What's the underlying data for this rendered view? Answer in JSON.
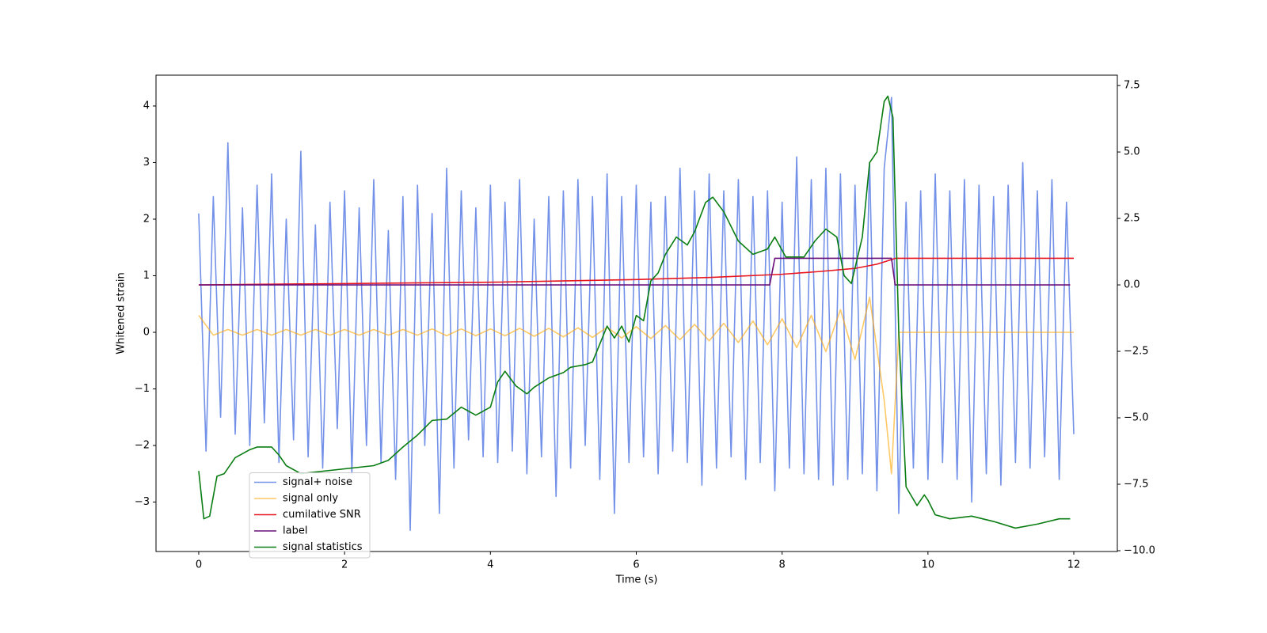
{
  "chart_data": {
    "type": "line",
    "xlabel": "Time (s)",
    "ylabel": "Whitened strain",
    "xlim": [
      -0.586,
      12.597
    ],
    "xticks": [
      0,
      2,
      4,
      6,
      8,
      10,
      12
    ],
    "ylim": [
      -3.874,
      4.545
    ],
    "yticks": [
      {
        "value": -3,
        "label": "−3"
      },
      {
        "value": -2,
        "label": "−2"
      },
      {
        "value": -1,
        "label": "−1"
      },
      0,
      1,
      2,
      3,
      4
    ],
    "y2lim": [
      -10.03,
      7.89
    ],
    "y2ticks": [
      {
        "value": -10,
        "label": "−10.0"
      },
      {
        "value": -7.5,
        "label": "−7.5"
      },
      {
        "value": -5,
        "label": "−5.0"
      },
      {
        "value": -2.5,
        "label": "−2.5"
      },
      {
        "value": 0,
        "label": "0.0"
      },
      2.5,
      {
        "value": 5,
        "label": "5.0"
      },
      7.5
    ],
    "grid": false,
    "legend": "lower left",
    "series": [
      {
        "name": "signal+ noise",
        "color": "#7391e8",
        "x": [
          0,
          0.1,
          0.2,
          0.3,
          0.4,
          0.5,
          0.6,
          0.7,
          0.8,
          0.9,
          1,
          1.1,
          1.2,
          1.3,
          1.4,
          1.5,
          1.6,
          1.7,
          1.8,
          1.9,
          2,
          2.1,
          2.2,
          2.3,
          2.4,
          2.5,
          2.6,
          2.7,
          2.8,
          2.9,
          3,
          3.1,
          3.2,
          3.3,
          3.4,
          3.5,
          3.6,
          3.7,
          3.8,
          3.9,
          4,
          4.1,
          4.2,
          4.3,
          4.4,
          4.5,
          4.6,
          4.7,
          4.8,
          4.9,
          5,
          5.1,
          5.2,
          5.3,
          5.4,
          5.5,
          5.6,
          5.7,
          5.8,
          5.9,
          6,
          6.1,
          6.2,
          6.3,
          6.4,
          6.5,
          6.6,
          6.7,
          6.8,
          6.9,
          7,
          7.1,
          7.2,
          7.3,
          7.4,
          7.5,
          7.6,
          7.7,
          7.8,
          7.9,
          8,
          8.1,
          8.2,
          8.3,
          8.4,
          8.5,
          8.6,
          8.7,
          8.8,
          8.9,
          9,
          9.1,
          9.2,
          9.3,
          9.4,
          9.5,
          9.6,
          9.7,
          9.8,
          9.9,
          10,
          10.1,
          10.2,
          10.3,
          10.4,
          10.5,
          10.6,
          10.7,
          10.8,
          10.9,
          11,
          11.1,
          11.2,
          11.3,
          11.4,
          11.5,
          11.6,
          11.7,
          11.8,
          11.9,
          12
        ],
        "values": [
          2.1,
          -2.1,
          2.4,
          -1.5,
          3.35,
          -1.8,
          2.2,
          -2.0,
          2.6,
          -1.6,
          2.8,
          -2.3,
          2.0,
          -1.9,
          3.2,
          -2.2,
          1.9,
          -2.4,
          2.3,
          -1.7,
          2.5,
          -2.5,
          2.2,
          -2.0,
          2.7,
          -2.3,
          1.8,
          -2.6,
          2.4,
          -3.5,
          2.6,
          -2.0,
          2.1,
          -3.2,
          2.9,
          -2.4,
          2.5,
          -1.9,
          2.2,
          -2.2,
          2.6,
          -2.3,
          2.3,
          -2.1,
          2.7,
          -2.5,
          2.0,
          -2.2,
          2.4,
          -2.9,
          2.5,
          -2.4,
          2.7,
          -2.0,
          2.4,
          -2.6,
          2.8,
          -3.2,
          2.4,
          -2.3,
          2.6,
          -2.2,
          2.3,
          -2.5,
          2.4,
          -2.1,
          2.9,
          -2.3,
          2.5,
          -2.7,
          2.8,
          -2.4,
          2.5,
          -2.2,
          2.7,
          -2.6,
          2.4,
          -2.3,
          2.5,
          -2.8,
          2.3,
          -2.4,
          3.1,
          -2.5,
          2.7,
          -2.6,
          2.9,
          -2.7,
          2.8,
          -2.6,
          2.6,
          -2.5,
          3.0,
          -2.8,
          2.9,
          4.15,
          -3.2,
          2.3,
          -2.4,
          2.5,
          -2.6,
          2.8,
          -2.3,
          2.5,
          -2.6,
          2.7,
          -3.0,
          2.6,
          -2.5,
          2.4,
          -2.7,
          2.6,
          -2.3,
          3.0,
          -2.4,
          2.5,
          -2.2,
          2.7,
          -2.6,
          2.3,
          -1.8
        ]
      },
      {
        "name": "signal only",
        "color": "#ffa500",
        "x": [
          0,
          0.2,
          0.4,
          0.6,
          0.8,
          1,
          1.2,
          1.4,
          1.6,
          1.8,
          2,
          2.2,
          2.4,
          2.6,
          2.8,
          3,
          3.2,
          3.4,
          3.6,
          3.8,
          4,
          4.2,
          4.4,
          4.6,
          4.8,
          5,
          5.2,
          5.4,
          5.6,
          5.8,
          6,
          6.2,
          6.4,
          6.6,
          6.8,
          7,
          7.2,
          7.4,
          7.6,
          7.8,
          8,
          8.2,
          8.4,
          8.6,
          8.8,
          9,
          9.2,
          9.4,
          9.5,
          9.6,
          10,
          11,
          12
        ],
        "values": [
          0.3,
          -0.05,
          0.05,
          -0.05,
          0.05,
          -0.05,
          0.05,
          -0.05,
          0.05,
          -0.05,
          0.05,
          -0.05,
          0.05,
          -0.05,
          0.05,
          -0.05,
          0.06,
          -0.06,
          0.06,
          -0.06,
          0.06,
          -0.06,
          0.07,
          -0.07,
          0.07,
          -0.08,
          0.08,
          -0.09,
          0.09,
          -0.1,
          0.1,
          -0.11,
          0.12,
          -0.13,
          0.14,
          -0.15,
          0.16,
          -0.18,
          0.2,
          -0.22,
          0.24,
          -0.27,
          0.3,
          -0.34,
          0.4,
          -0.48,
          0.62,
          -1.2,
          -2.5,
          0,
          0,
          0,
          0
        ]
      },
      {
        "name": "cumilative SNR",
        "color": "#e8141e",
        "axis": "y2",
        "x": [
          0,
          2,
          4,
          6,
          7,
          8,
          8.5,
          9,
          9.3,
          9.5,
          9.55,
          12
        ],
        "values": [
          0.0,
          0.05,
          0.1,
          0.2,
          0.28,
          0.4,
          0.5,
          0.62,
          0.78,
          0.95,
          1.0,
          1.0
        ]
      },
      {
        "name": "label",
        "color": "#6a0f7a",
        "axis": "y2",
        "x": [
          0,
          7.83,
          7.9,
          9.5,
          9.55,
          11.95
        ],
        "values": [
          0,
          0,
          1,
          1,
          0,
          0
        ]
      },
      {
        "name": "signal statistics",
        "color": "#0a7d12",
        "axis": "y2",
        "x": [
          0,
          0.07,
          0.15,
          0.25,
          0.35,
          0.5,
          0.7,
          0.8,
          1.0,
          1.1,
          1.2,
          1.4,
          2.4,
          2.6,
          2.8,
          3.0,
          3.2,
          3.4,
          3.6,
          3.8,
          4.0,
          4.1,
          4.2,
          4.35,
          4.5,
          4.6,
          4.8,
          5.0,
          5.1,
          5.3,
          5.4,
          5.6,
          5.7,
          5.8,
          5.9,
          6.0,
          6.1,
          6.2,
          6.3,
          6.4,
          6.55,
          6.7,
          6.8,
          6.95,
          7.05,
          7.2,
          7.4,
          7.6,
          7.8,
          7.9,
          8.05,
          8.3,
          8.45,
          8.6,
          8.75,
          8.85,
          8.95,
          9.1,
          9.2,
          9.3,
          9.4,
          9.45,
          9.52,
          9.6,
          9.7,
          9.85,
          9.95,
          10.0,
          10.1,
          10.3,
          10.6,
          10.9,
          11.2,
          11.5,
          11.8,
          11.95
        ],
        "values": [
          -7.0,
          -8.8,
          -8.7,
          -7.2,
          -7.1,
          -6.5,
          -6.2,
          -6.1,
          -6.1,
          -6.4,
          -6.8,
          -7.1,
          -6.8,
          -6.6,
          -6.1,
          -5.65,
          -5.1,
          -5.05,
          -4.6,
          -4.9,
          -4.6,
          -3.65,
          -3.25,
          -3.8,
          -4.1,
          -3.85,
          -3.5,
          -3.3,
          -3.1,
          -3.0,
          -2.9,
          -1.55,
          -2.0,
          -1.55,
          -2.15,
          -1.15,
          -1.35,
          0.15,
          0.45,
          1.15,
          1.8,
          1.5,
          2.0,
          3.1,
          3.3,
          2.75,
          1.65,
          1.15,
          1.35,
          1.8,
          1.05,
          1.05,
          1.65,
          2.1,
          1.8,
          0.35,
          0.05,
          1.8,
          4.6,
          5.0,
          6.9,
          7.1,
          6.3,
          -1.8,
          -7.6,
          -8.3,
          -7.9,
          -8.1,
          -8.65,
          -8.8,
          -8.7,
          -8.9,
          -9.15,
          -9.0,
          -8.8,
          -8.8
        ]
      }
    ]
  }
}
